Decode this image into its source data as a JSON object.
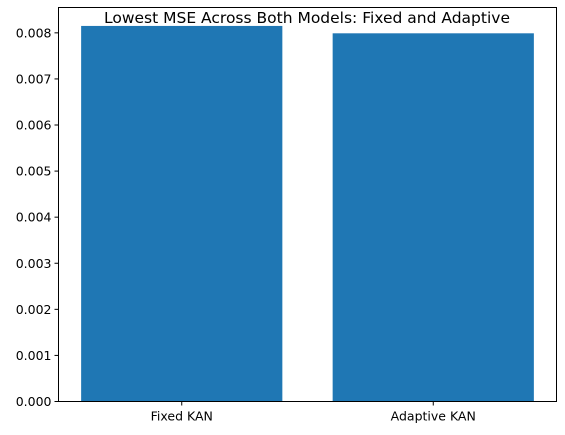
{
  "chart_data": {
    "type": "bar",
    "title": "Lowest MSE Across Both Models: Fixed and Adaptive",
    "xlabel": "",
    "ylabel": "",
    "categories": [
      "Fixed KAN",
      "Adaptive KAN"
    ],
    "values": [
      0.00815,
      0.00799
    ],
    "ylim": [
      0,
      0.00855
    ],
    "yticks": [
      "0.000",
      "0.001",
      "0.002",
      "0.003",
      "0.004",
      "0.005",
      "0.006",
      "0.007",
      "0.008"
    ],
    "bar_color": "#1f77b4",
    "grid": false,
    "legend": "none"
  }
}
